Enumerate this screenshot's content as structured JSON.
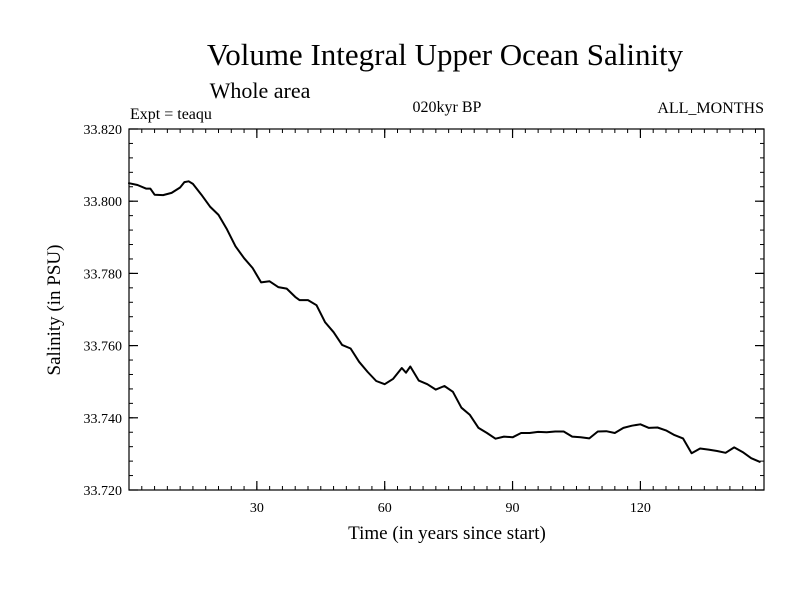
{
  "chart_data": {
    "type": "line",
    "title": "Volume Integral Upper Ocean Salinity",
    "subtitle": "Whole area",
    "info_left": "Expt = teaqu",
    "info_center": "020kyr BP",
    "info_right": "ALL_MONTHS",
    "xlabel": "Time (in years since start)",
    "ylabel": "Salinity (in PSU)",
    "xlim": [
      0,
      149
    ],
    "ylim": [
      33.72,
      33.82
    ],
    "xticks": [
      30,
      60,
      90,
      120
    ],
    "xtick_labels": [
      "30",
      "60",
      "90",
      "120"
    ],
    "yticks": [
      33.72,
      33.74,
      33.76,
      33.78,
      33.8,
      33.82
    ],
    "ytick_labels": [
      "33.720",
      "33.740",
      "33.760",
      "33.780",
      "33.800",
      "33.820"
    ],
    "grid": false,
    "series": [
      {
        "name": "teaqu",
        "color": "#000000",
        "x": [
          0,
          2,
          4,
          5,
          6,
          8,
          10,
          12,
          13,
          14,
          15,
          17,
          19,
          21,
          23,
          25,
          27,
          29,
          31,
          33,
          35,
          37,
          39,
          40,
          42,
          44,
          46,
          48,
          50,
          52,
          54,
          56,
          58,
          60,
          62,
          64,
          65,
          66,
          68,
          70,
          72,
          74,
          76,
          78,
          80,
          82,
          84,
          86,
          88,
          90,
          92,
          94,
          96,
          98,
          100,
          102,
          104,
          106,
          108,
          110,
          112,
          114,
          116,
          118,
          120,
          122,
          124,
          126,
          128,
          130,
          132,
          134,
          136,
          138,
          140,
          142,
          144,
          146,
          148
        ],
        "values": [
          33.805,
          33.8045,
          33.8035,
          33.8035,
          33.8018,
          33.8017,
          33.8023,
          33.8038,
          33.8053,
          33.8055,
          33.8048,
          33.8018,
          33.7985,
          33.7962,
          33.7922,
          33.7875,
          33.7842,
          33.7815,
          33.7775,
          33.7778,
          33.7762,
          33.7758,
          33.7735,
          33.7726,
          33.7726,
          33.7712,
          33.7665,
          33.7637,
          33.7602,
          33.7592,
          33.7555,
          33.7527,
          33.7502,
          33.7493,
          33.7508,
          33.7538,
          33.7525,
          33.7542,
          33.7503,
          33.7493,
          33.7478,
          33.7488,
          33.7472,
          33.7428,
          33.7408,
          33.7372,
          33.7358,
          33.7342,
          33.7348,
          33.7346,
          33.7358,
          33.7358,
          33.7361,
          33.736,
          33.7362,
          33.7362,
          33.7348,
          33.7346,
          33.7343,
          33.7362,
          33.7363,
          33.7358,
          33.7372,
          33.7378,
          33.7382,
          33.7372,
          33.7373,
          33.7365,
          33.7352,
          33.7343,
          33.7302,
          33.7315,
          33.7312,
          33.7308,
          33.7303,
          33.7318,
          33.7305,
          33.7288,
          33.7278
        ]
      }
    ]
  }
}
